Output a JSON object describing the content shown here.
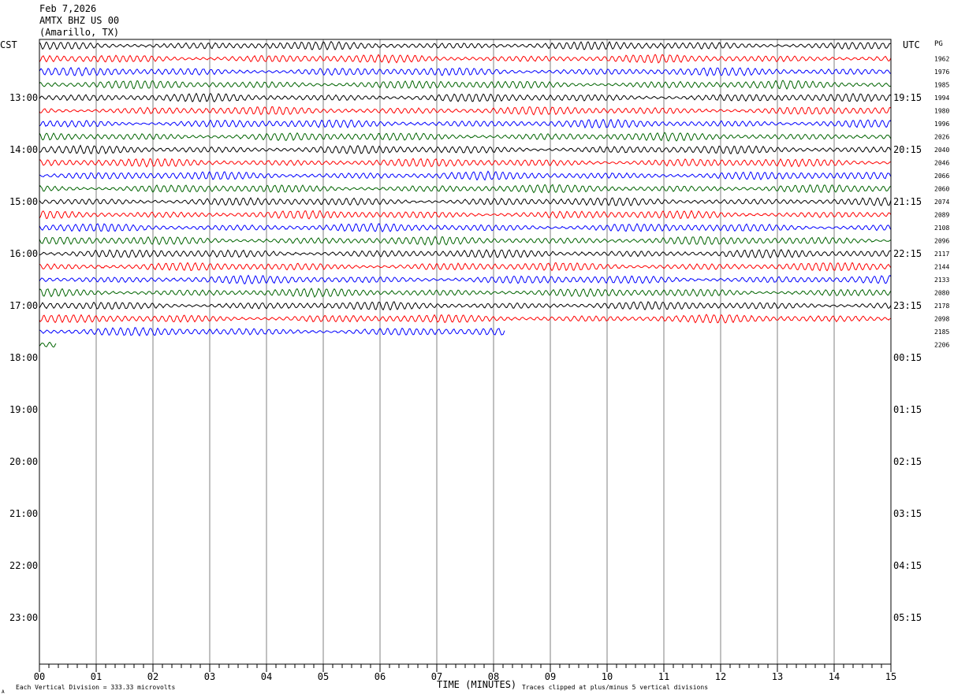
{
  "header": {
    "date": "Feb 7,2026",
    "station": "AMTX BHZ US 00",
    "location": "(Amarillo, TX)"
  },
  "chart_data": {
    "type": "line",
    "title": "Feb 7,2026 AMTX BHZ US 00 (Amarillo, TX)",
    "left_axis_label": "CST",
    "right_axis_label": "UTC",
    "right_column_label": "PG",
    "xlabel": "TIME (MINUTES)",
    "x_range": [
      0,
      15
    ],
    "x_ticks": [
      "00",
      "01",
      "02",
      "03",
      "04",
      "05",
      "06",
      "07",
      "08",
      "09",
      "10",
      "11",
      "12",
      "13",
      "14",
      "15"
    ],
    "cst_hour_labels": [
      "13:00",
      "14:00",
      "15:00",
      "16:00",
      "17:00",
      "18:00",
      "19:00",
      "20:00",
      "21:00",
      "22:00",
      "23:00"
    ],
    "utc_hour_labels": [
      "19:15",
      "20:15",
      "21:15",
      "22:15",
      "23:15",
      "00:15",
      "01:15",
      "02:15",
      "03:15",
      "04:15",
      "05:15"
    ],
    "trace_colors": [
      "#000000",
      "#ff0000",
      "#0000ff",
      "#006400"
    ],
    "trace_pg_values": [
      "1962",
      "1976",
      "1985",
      "1994",
      "1980",
      "1996",
      "2026",
      "2040",
      "2046",
      "2066",
      "2060",
      "2074",
      "2089",
      "2108",
      "2096",
      "2117",
      "2144",
      "2133",
      "2080",
      "2178",
      "2098",
      "2185",
      "2206"
    ],
    "trace_extents_minutes": [
      15,
      15,
      15,
      15,
      15,
      15,
      15,
      15,
      15,
      15,
      15,
      15,
      15,
      15,
      15,
      15,
      15,
      15,
      15,
      15,
      15,
      15,
      8.2,
      0.3
    ],
    "footer_left": "Each Vertical Division =  333.33 microvolts",
    "footer_right": "Traces clipped at plus/minus 5 vertical divisions",
    "corner_mark": "A"
  }
}
